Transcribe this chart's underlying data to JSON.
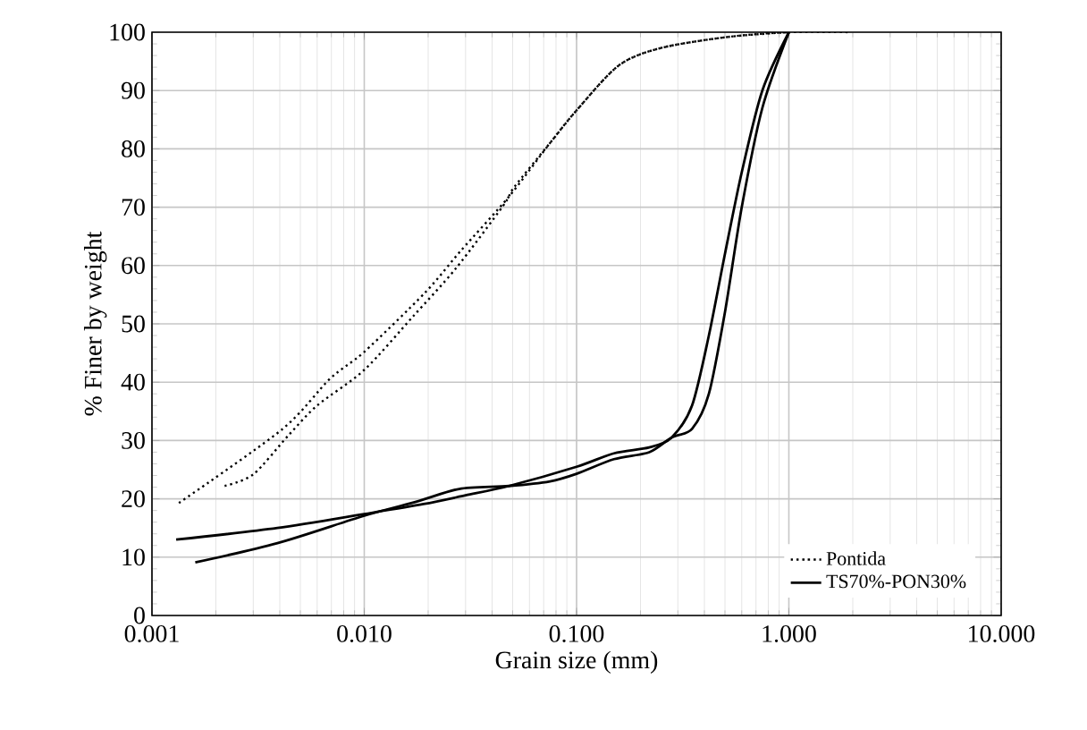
{
  "chart_data": {
    "type": "line",
    "xlabel": "Grain size (mm)",
    "ylabel": "% Finer by weight",
    "log": "x",
    "grid": true,
    "legend": "bottom right",
    "marker": "none",
    "xlim": [
      0.001,
      10
    ],
    "ylim": [
      0,
      100
    ],
    "xticks": [
      0.001,
      {
        "value": 0.01,
        "label": "0.010"
      },
      {
        "value": 0.1,
        "label": "0.100"
      },
      {
        "value": 1,
        "label": "1.000"
      },
      {
        "value": 10,
        "label": "10.000"
      }
    ],
    "yticks": [
      0,
      10,
      20,
      30,
      40,
      50,
      60,
      70,
      80,
      90,
      100
    ],
    "series": [
      {
        "name": "Pontida",
        "color": "#000000",
        "line_style": "dotted",
        "x": [
          0.00134,
          0.0041,
          0.0069,
          0.01,
          0.0194,
          0.0286,
          0.048,
          0.075,
          0.1,
          0.158,
          0.25,
          0.52,
          1,
          1.96
        ],
        "values": [
          19.3,
          31.9,
          40.6,
          45.2,
          55.4,
          62.6,
          71.8,
          81,
          86.6,
          94.3,
          97.3,
          99.2,
          100,
          100
        ]
      },
      {
        "color": "#000000",
        "line_style": "dotted",
        "x": [
          0.0022,
          0.003,
          0.0044,
          0.006,
          0.01,
          0.017,
          0.027,
          0.045,
          0.051,
          0.075,
          0.1,
          0.158,
          0.25,
          0.52,
          1
        ],
        "values": [
          22.2,
          24.2,
          30.9,
          36,
          42.1,
          51.3,
          59.5,
          70.2,
          73.5,
          81,
          86.6,
          94.3,
          97.3,
          99.2,
          100
        ]
      },
      {
        "name": "TS70%-PON30%",
        "color": "#000000",
        "line_style": "solid",
        "x": [
          0.0013,
          0.0039,
          0.01,
          0.019,
          0.03,
          0.048,
          0.1,
          0.15,
          0.22,
          0.28,
          0.35,
          0.42,
          0.5,
          0.6,
          0.75,
          1
        ],
        "values": [
          13,
          15,
          17.4,
          19.1,
          20.6,
          22.2,
          25.5,
          27.8,
          28.8,
          30.5,
          36,
          48,
          62,
          76,
          90,
          100
        ]
      },
      {
        "color": "#000000",
        "line_style": "solid",
        "x": [
          0.0016,
          0.0039,
          0.01,
          0.018,
          0.028,
          0.048,
          0.075,
          0.1,
          0.15,
          0.22,
          0.28,
          0.35,
          0.42,
          0.5,
          0.6,
          0.75,
          1
        ],
        "values": [
          9.1,
          12.4,
          17.1,
          19.6,
          21.7,
          22.2,
          23,
          24.3,
          26.8,
          28,
          30.5,
          32,
          38,
          52,
          70,
          87,
          100
        ]
      }
    ]
  }
}
